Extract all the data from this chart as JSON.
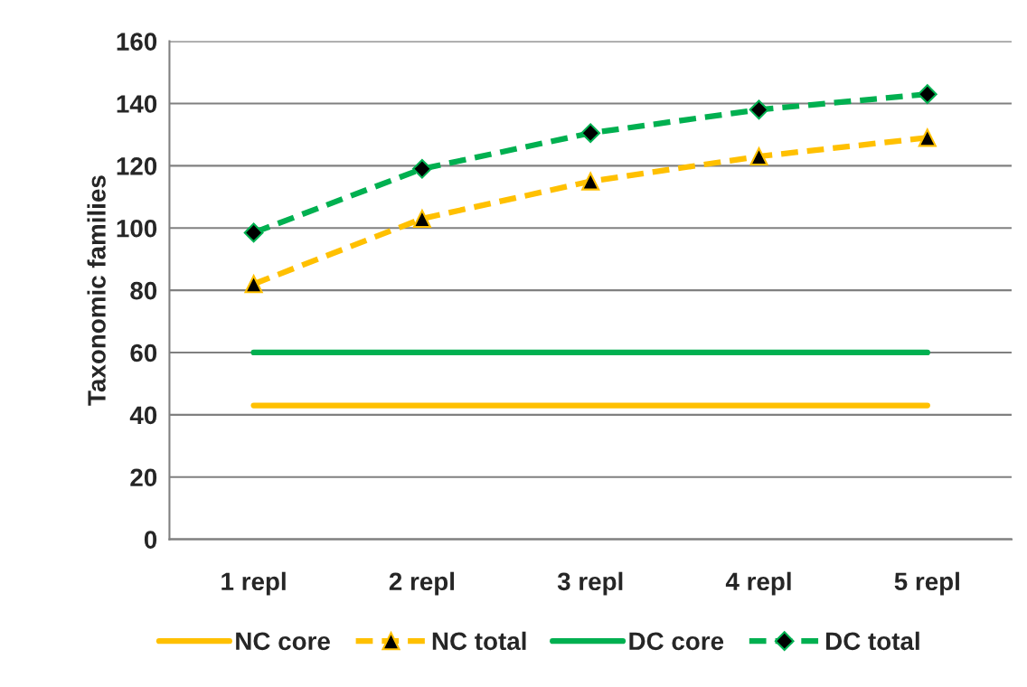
{
  "chart_data": {
    "type": "line",
    "ylabel": "Taxonomic families",
    "categories": [
      "1 repl",
      "2 repl",
      "3 repl",
      "4 repl",
      "5 repl"
    ],
    "series": [
      {
        "name": "NC core",
        "color": "#ffc000",
        "values": [
          43,
          43,
          43,
          43,
          43
        ],
        "marker": "none",
        "line_style": "solid"
      },
      {
        "name": "NC total",
        "color": "#ffc000",
        "values": [
          82,
          103,
          115,
          123,
          129
        ],
        "marker": "triangle",
        "line_style": "dashed"
      },
      {
        "name": "DC core",
        "color": "#00b050",
        "values": [
          60,
          60,
          60,
          60,
          60
        ],
        "marker": "none",
        "line_style": "solid"
      },
      {
        "name": "DC total",
        "color": "#00b050",
        "values": [
          98.5,
          119,
          130.5,
          138,
          143
        ],
        "marker": "diamond",
        "line_style": "dashed"
      }
    ],
    "ylim": [
      0,
      160
    ],
    "yticks": [
      0,
      20,
      40,
      60,
      80,
      100,
      120,
      140,
      160
    ],
    "grid": "y",
    "legend": "bottom"
  }
}
